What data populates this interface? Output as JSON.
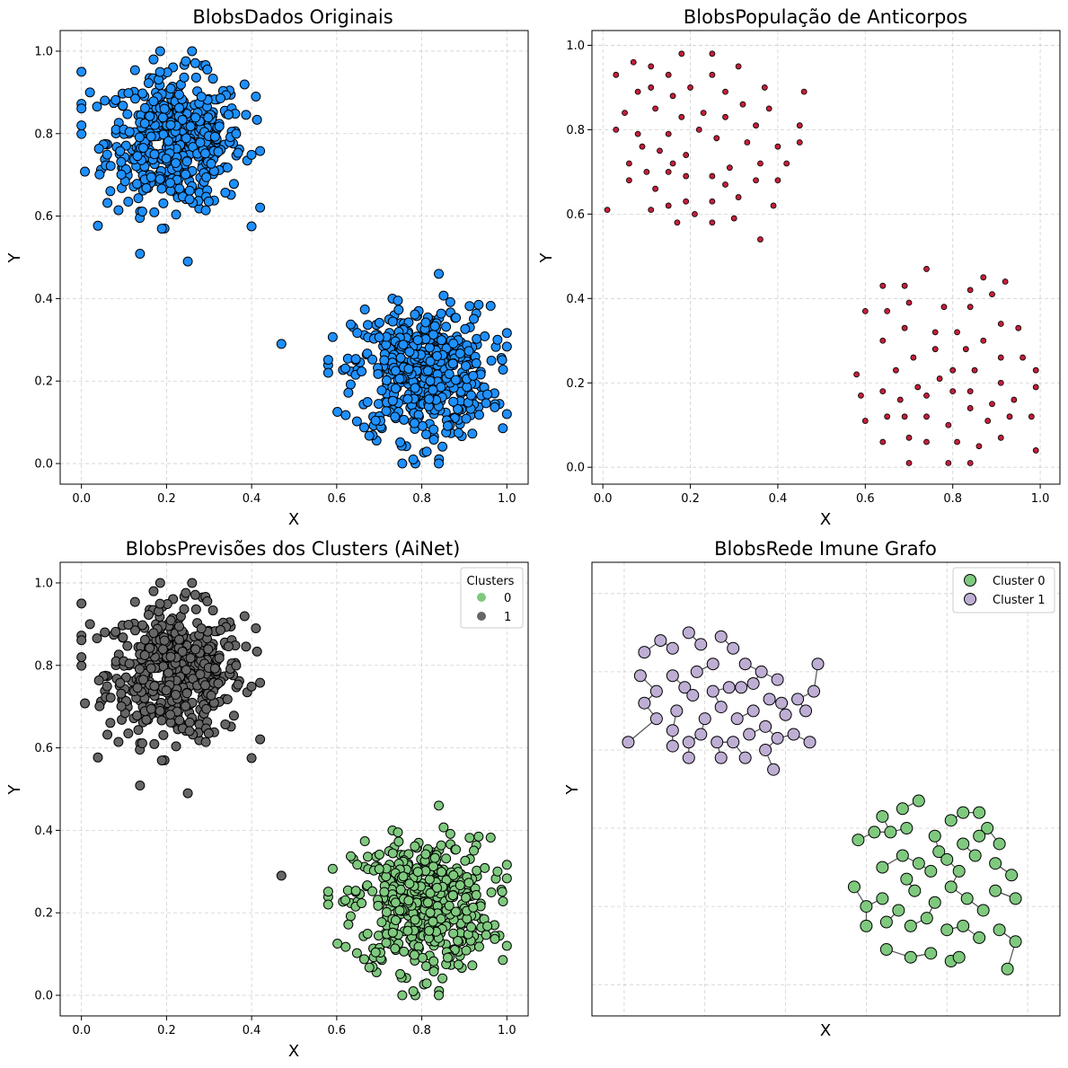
{
  "chart_data": [
    {
      "type": "scatter",
      "title": "BlobsDados Originais",
      "xlabel": "X",
      "ylabel": "Y",
      "xlim": [
        -0.05,
        1.05
      ],
      "ylim": [
        -0.05,
        1.05
      ],
      "xticks": [
        "0.0",
        "0.2",
        "0.4",
        "0.6",
        "0.8",
        "1.0"
      ],
      "yticks": [
        "0.0",
        "0.2",
        "0.4",
        "0.6",
        "0.8",
        "1.0"
      ],
      "grid": true,
      "point_color": "#1E90FF",
      "clusters": [
        {
          "center": [
            0.22,
            0.78
          ],
          "spread": [
            0.08,
            0.08
          ],
          "n": 500,
          "xrange": [
            0.0,
            0.42
          ],
          "yrange": [
            0.49,
            1.0
          ]
        },
        {
          "center": [
            0.8,
            0.22
          ],
          "spread": [
            0.08,
            0.08
          ],
          "n": 500,
          "xrange": [
            0.58,
            1.0
          ],
          "yrange": [
            0.0,
            0.46
          ]
        }
      ],
      "notable_points": [
        [
          0.0,
          0.95
        ],
        [
          0.0,
          0.82
        ],
        [
          0.02,
          0.9
        ],
        [
          0.26,
          1.0
        ],
        [
          0.25,
          0.49
        ],
        [
          0.47,
          0.29
        ],
        [
          0.84,
          0.46
        ],
        [
          0.84,
          0.0
        ],
        [
          0.78,
          0.01
        ],
        [
          1.0,
          0.12
        ],
        [
          0.58,
          0.22
        ],
        [
          0.41,
          0.89
        ]
      ]
    },
    {
      "type": "scatter",
      "title": "BlobsPopulação de Anticorpos",
      "xlabel": "X",
      "ylabel": "Y",
      "xlim": [
        -0.025,
        1.045
      ],
      "ylim": [
        -0.04,
        1.035
      ],
      "xticks": [
        "0.0",
        "0.2",
        "0.4",
        "0.6",
        "0.8",
        "1.0"
      ],
      "yticks": [
        "0.0",
        "0.2",
        "0.4",
        "0.6",
        "0.8",
        "1.0"
      ],
      "grid": true,
      "point_color": "#C41E3A",
      "points": [
        [
          0.03,
          0.93
        ],
        [
          0.07,
          0.96
        ],
        [
          0.11,
          0.95
        ],
        [
          0.18,
          0.98
        ],
        [
          0.25,
          0.98
        ],
        [
          0.31,
          0.95
        ],
        [
          0.05,
          0.84
        ],
        [
          0.08,
          0.89
        ],
        [
          0.11,
          0.9
        ],
        [
          0.15,
          0.93
        ],
        [
          0.2,
          0.9
        ],
        [
          0.25,
          0.93
        ],
        [
          0.28,
          0.89
        ],
        [
          0.37,
          0.9
        ],
        [
          0.46,
          0.89
        ],
        [
          0.03,
          0.8
        ],
        [
          0.08,
          0.79
        ],
        [
          0.12,
          0.85
        ],
        [
          0.16,
          0.88
        ],
        [
          0.18,
          0.83
        ],
        [
          0.23,
          0.84
        ],
        [
          0.28,
          0.83
        ],
        [
          0.32,
          0.86
        ],
        [
          0.35,
          0.81
        ],
        [
          0.38,
          0.85
        ],
        [
          0.45,
          0.81
        ],
        [
          0.06,
          0.72
        ],
        [
          0.09,
          0.76
        ],
        [
          0.1,
          0.7
        ],
        [
          0.13,
          0.75
        ],
        [
          0.15,
          0.79
        ],
        [
          0.16,
          0.72
        ],
        [
          0.19,
          0.74
        ],
        [
          0.22,
          0.8
        ],
        [
          0.26,
          0.78
        ],
        [
          0.29,
          0.71
        ],
        [
          0.33,
          0.77
        ],
        [
          0.36,
          0.72
        ],
        [
          0.4,
          0.76
        ],
        [
          0.42,
          0.72
        ],
        [
          0.45,
          0.77
        ],
        [
          0.06,
          0.68
        ],
        [
          0.12,
          0.66
        ],
        [
          0.15,
          0.7
        ],
        [
          0.19,
          0.69
        ],
        [
          0.25,
          0.69
        ],
        [
          0.28,
          0.67
        ],
        [
          0.35,
          0.68
        ],
        [
          0.4,
          0.68
        ],
        [
          0.01,
          0.61
        ],
        [
          0.11,
          0.61
        ],
        [
          0.15,
          0.62
        ],
        [
          0.19,
          0.63
        ],
        [
          0.21,
          0.6
        ],
        [
          0.25,
          0.63
        ],
        [
          0.31,
          0.64
        ],
        [
          0.17,
          0.58
        ],
        [
          0.25,
          0.58
        ],
        [
          0.3,
          0.59
        ],
        [
          0.39,
          0.62
        ],
        [
          0.36,
          0.54
        ],
        [
          0.64,
          0.43
        ],
        [
          0.69,
          0.43
        ],
        [
          0.74,
          0.47
        ],
        [
          0.87,
          0.45
        ],
        [
          0.92,
          0.44
        ],
        [
          0.6,
          0.37
        ],
        [
          0.65,
          0.37
        ],
        [
          0.7,
          0.39
        ],
        [
          0.78,
          0.38
        ],
        [
          0.84,
          0.38
        ],
        [
          0.89,
          0.41
        ],
        [
          0.84,
          0.42
        ],
        [
          0.64,
          0.3
        ],
        [
          0.69,
          0.33
        ],
        [
          0.76,
          0.32
        ],
        [
          0.81,
          0.32
        ],
        [
          0.87,
          0.3
        ],
        [
          0.91,
          0.34
        ],
        [
          0.95,
          0.33
        ],
        [
          0.67,
          0.23
        ],
        [
          0.71,
          0.26
        ],
        [
          0.76,
          0.28
        ],
        [
          0.8,
          0.23
        ],
        [
          0.83,
          0.28
        ],
        [
          0.85,
          0.23
        ],
        [
          0.91,
          0.26
        ],
        [
          0.96,
          0.26
        ],
        [
          0.99,
          0.23
        ],
        [
          0.58,
          0.22
        ],
        [
          0.59,
          0.17
        ],
        [
          0.64,
          0.18
        ],
        [
          0.68,
          0.16
        ],
        [
          0.72,
          0.19
        ],
        [
          0.74,
          0.17
        ],
        [
          0.77,
          0.21
        ],
        [
          0.8,
          0.18
        ],
        [
          0.84,
          0.18
        ],
        [
          0.89,
          0.15
        ],
        [
          0.91,
          0.2
        ],
        [
          0.94,
          0.16
        ],
        [
          0.99,
          0.19
        ],
        [
          0.6,
          0.11
        ],
        [
          0.65,
          0.12
        ],
        [
          0.69,
          0.12
        ],
        [
          0.74,
          0.12
        ],
        [
          0.79,
          0.1
        ],
        [
          0.84,
          0.14
        ],
        [
          0.88,
          0.11
        ],
        [
          0.93,
          0.12
        ],
        [
          0.98,
          0.12
        ],
        [
          0.64,
          0.06
        ],
        [
          0.7,
          0.07
        ],
        [
          0.74,
          0.06
        ],
        [
          0.81,
          0.06
        ],
        [
          0.86,
          0.05
        ],
        [
          0.91,
          0.07
        ],
        [
          0.99,
          0.04
        ],
        [
          0.7,
          0.01
        ],
        [
          0.79,
          0.01
        ],
        [
          0.84,
          0.01
        ]
      ]
    },
    {
      "type": "scatter",
      "title": "BlobsPrevisões dos Clusters (AiNet)",
      "xlabel": "X",
      "ylabel": "Y",
      "xlim": [
        -0.05,
        1.05
      ],
      "ylim": [
        -0.05,
        1.05
      ],
      "xticks": [
        "0.0",
        "0.2",
        "0.4",
        "0.6",
        "0.8",
        "1.0"
      ],
      "yticks": [
        "0.0",
        "0.2",
        "0.4",
        "0.6",
        "0.8",
        "1.0"
      ],
      "grid": true,
      "legend": {
        "title": "Clusters",
        "position": "upper right",
        "entries": [
          {
            "label": "0",
            "color": "#7FC97F"
          },
          {
            "label": "1",
            "color": "#666666"
          }
        ]
      },
      "note": "same points as first panel; upper-left cluster colored 1, lower-right cluster colored 0"
    },
    {
      "type": "scatter",
      "title": "BlobsRede Imune Grafo",
      "xlabel": "X",
      "ylabel": "Y",
      "grid": true,
      "show_ticks": false,
      "legend": {
        "position": "upper right",
        "entries": [
          {
            "label": "Cluster 0",
            "color": "#7FC97F"
          },
          {
            "label": "Cluster 1",
            "color": "#BEAED4"
          }
        ]
      },
      "cluster1_nodes": [
        [
          0.05,
          0.85
        ],
        [
          0.09,
          0.88
        ],
        [
          0.12,
          0.86
        ],
        [
          0.16,
          0.9
        ],
        [
          0.19,
          0.87
        ],
        [
          0.24,
          0.89
        ],
        [
          0.22,
          0.82
        ],
        [
          0.27,
          0.86
        ],
        [
          0.3,
          0.82
        ],
        [
          0.34,
          0.8
        ],
        [
          0.38,
          0.78
        ],
        [
          0.04,
          0.79
        ],
        [
          0.08,
          0.75
        ],
        [
          0.12,
          0.79
        ],
        [
          0.15,
          0.76
        ],
        [
          0.18,
          0.8
        ],
        [
          0.22,
          0.75
        ],
        [
          0.26,
          0.76
        ],
        [
          0.29,
          0.76
        ],
        [
          0.32,
          0.77
        ],
        [
          0.36,
          0.73
        ],
        [
          0.39,
          0.72
        ],
        [
          0.43,
          0.73
        ],
        [
          0.48,
          0.82
        ],
        [
          0.05,
          0.72
        ],
        [
          0.08,
          0.68
        ],
        [
          0.13,
          0.7
        ],
        [
          0.17,
          0.74
        ],
        [
          0.2,
          0.68
        ],
        [
          0.24,
          0.71
        ],
        [
          0.28,
          0.68
        ],
        [
          0.32,
          0.7
        ],
        [
          0.35,
          0.66
        ],
        [
          0.4,
          0.69
        ],
        [
          0.45,
          0.7
        ],
        [
          0.47,
          0.75
        ],
        [
          0.01,
          0.62
        ],
        [
          0.12,
          0.65
        ],
        [
          0.16,
          0.62
        ],
        [
          0.19,
          0.64
        ],
        [
          0.23,
          0.62
        ],
        [
          0.27,
          0.62
        ],
        [
          0.31,
          0.64
        ],
        [
          0.35,
          0.6
        ],
        [
          0.38,
          0.63
        ],
        [
          0.42,
          0.64
        ],
        [
          0.46,
          0.62
        ],
        [
          0.12,
          0.61
        ],
        [
          0.16,
          0.58
        ],
        [
          0.24,
          0.58
        ],
        [
          0.3,
          0.58
        ],
        [
          0.37,
          0.55
        ]
      ],
      "cluster0_nodes": [
        [
          0.64,
          0.43
        ],
        [
          0.69,
          0.45
        ],
        [
          0.73,
          0.47
        ],
        [
          0.66,
          0.39
        ],
        [
          0.7,
          0.4
        ],
        [
          0.77,
          0.38
        ],
        [
          0.81,
          0.42
        ],
        [
          0.84,
          0.44
        ],
        [
          0.88,
          0.44
        ],
        [
          0.9,
          0.4
        ],
        [
          0.58,
          0.37
        ],
        [
          0.62,
          0.39
        ],
        [
          0.69,
          0.33
        ],
        [
          0.73,
          0.31
        ],
        [
          0.78,
          0.34
        ],
        [
          0.84,
          0.36
        ],
        [
          0.88,
          0.38
        ],
        [
          0.93,
          0.36
        ],
        [
          0.64,
          0.3
        ],
        [
          0.7,
          0.27
        ],
        [
          0.76,
          0.29
        ],
        [
          0.8,
          0.32
        ],
        [
          0.83,
          0.29
        ],
        [
          0.87,
          0.33
        ],
        [
          0.92,
          0.31
        ],
        [
          0.96,
          0.28
        ],
        [
          0.57,
          0.25
        ],
        [
          0.6,
          0.2
        ],
        [
          0.64,
          0.22
        ],
        [
          0.68,
          0.19
        ],
        [
          0.72,
          0.24
        ],
        [
          0.77,
          0.21
        ],
        [
          0.81,
          0.25
        ],
        [
          0.85,
          0.22
        ],
        [
          0.89,
          0.19
        ],
        [
          0.92,
          0.24
        ],
        [
          0.97,
          0.22
        ],
        [
          0.6,
          0.15
        ],
        [
          0.65,
          0.16
        ],
        [
          0.71,
          0.15
        ],
        [
          0.75,
          0.17
        ],
        [
          0.8,
          0.14
        ],
        [
          0.84,
          0.15
        ],
        [
          0.88,
          0.12
        ],
        [
          0.93,
          0.14
        ],
        [
          0.97,
          0.11
        ],
        [
          0.65,
          0.09
        ],
        [
          0.71,
          0.07
        ],
        [
          0.76,
          0.08
        ],
        [
          0.81,
          0.06
        ],
        [
          0.83,
          0.07
        ],
        [
          0.95,
          0.04
        ]
      ]
    }
  ]
}
